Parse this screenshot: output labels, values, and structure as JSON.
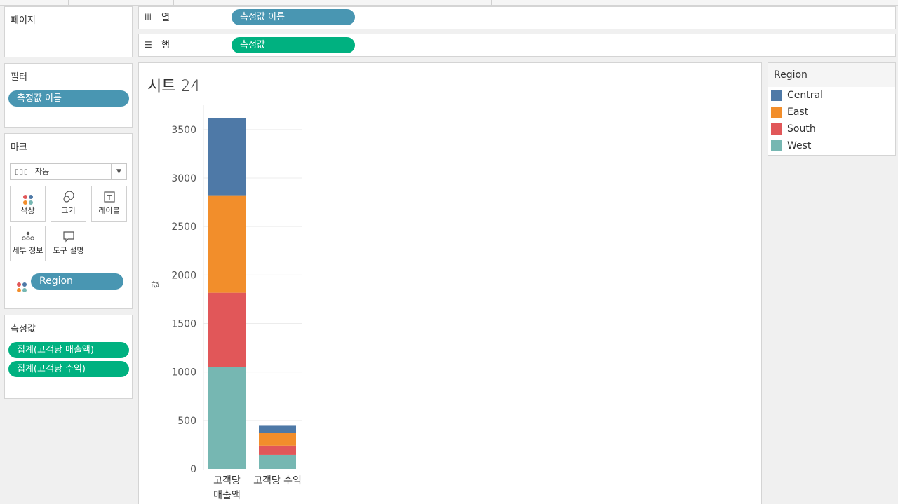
{
  "panels": {
    "pages": "페이지",
    "filters": "필터",
    "marks": "마크",
    "measures": "측정값"
  },
  "shelves": {
    "columns_label": "열",
    "columns_pill": "측정값 이름",
    "rows_label": "행",
    "rows_pill": "측정값"
  },
  "filters": {
    "pill": "측정값 이름"
  },
  "marks": {
    "type": "자동",
    "buttons": {
      "color": "색상",
      "size": "크기",
      "label": "레이블",
      "detail": "세부 정보",
      "tooltip": "도구 설명"
    },
    "color_field": "Region"
  },
  "measures": {
    "items": [
      "집계(고객당 매출액)",
      "집계(고객당 수익)"
    ]
  },
  "sheet": {
    "title": "시트 24"
  },
  "legend": {
    "title": "Region",
    "items": [
      {
        "label": "Central",
        "color": "#4e79a7"
      },
      {
        "label": "East",
        "color": "#f28e2b"
      },
      {
        "label": "South",
        "color": "#e15759"
      },
      {
        "label": "West",
        "color": "#76b7b2"
      }
    ]
  },
  "chart_data": {
    "type": "bar",
    "stacked": true,
    "categories": [
      "고객당 매출액",
      "고객당 수익"
    ],
    "category_lines": [
      [
        "고객당",
        "매출액"
      ],
      [
        "고객당 수익"
      ]
    ],
    "series": [
      {
        "name": "West",
        "values": [
          1055,
          145
        ],
        "color": "#76b7b2"
      },
      {
        "name": "South",
        "values": [
          762,
          95
        ],
        "color": "#e15759"
      },
      {
        "name": "East",
        "values": [
          1005,
          130
        ],
        "color": "#f28e2b"
      },
      {
        "name": "Central",
        "values": [
          795,
          75
        ],
        "color": "#4e79a7"
      }
    ],
    "ylabel": "값",
    "yticks": [
      0,
      500,
      1000,
      1500,
      2000,
      2500,
      3000,
      3500
    ],
    "ylim": [
      0,
      3600
    ],
    "grid": true
  }
}
